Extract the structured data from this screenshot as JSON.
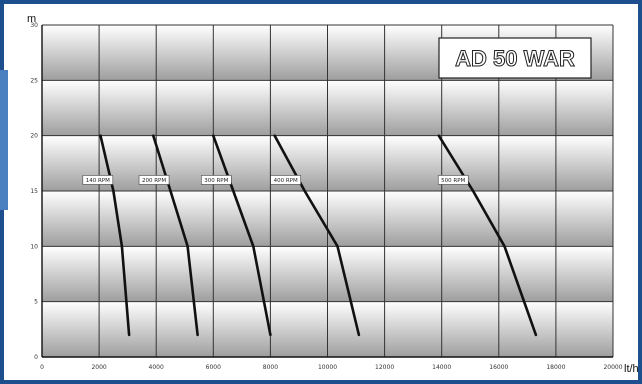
{
  "chart_data": {
    "type": "line",
    "title": "AD 50 WAR",
    "xlabel": "lt/h",
    "ylabel": "m",
    "xlim": [
      0,
      20000
    ],
    "ylim": [
      0,
      30
    ],
    "x_ticks": [
      "0",
      "2000",
      "4000",
      "6000",
      "8000",
      "10000",
      "12000",
      "14000",
      "16000",
      "18000",
      "20000"
    ],
    "y_ticks": [
      "0",
      "5",
      "10",
      "15",
      "20",
      "25",
      "30"
    ],
    "grid": true,
    "series": [
      {
        "name": "140 RPM",
        "x": [
          2050,
          2500,
          2800,
          3050
        ],
        "y": [
          20,
          15,
          10,
          2
        ]
      },
      {
        "name": "200 RPM",
        "x": [
          3900,
          4500,
          5100,
          5450
        ],
        "y": [
          20,
          15,
          10,
          2
        ]
      },
      {
        "name": "300 RPM",
        "x": [
          6000,
          6700,
          7400,
          8000
        ],
        "y": [
          20,
          15,
          10,
          2
        ]
      },
      {
        "name": "400 RPM",
        "x": [
          8150,
          9200,
          10350,
          11100
        ],
        "y": [
          20,
          15,
          10,
          2
        ]
      },
      {
        "name": "500 RPM",
        "x": [
          13900,
          15100,
          16200,
          17300
        ],
        "y": [
          20,
          15,
          10,
          2
        ]
      }
    ]
  },
  "colors": {
    "frame": "#1d4f8f",
    "line": "#111111",
    "grid": "#333333",
    "band_top": "#ffffff",
    "band_bottom": "#9e9e9e"
  }
}
